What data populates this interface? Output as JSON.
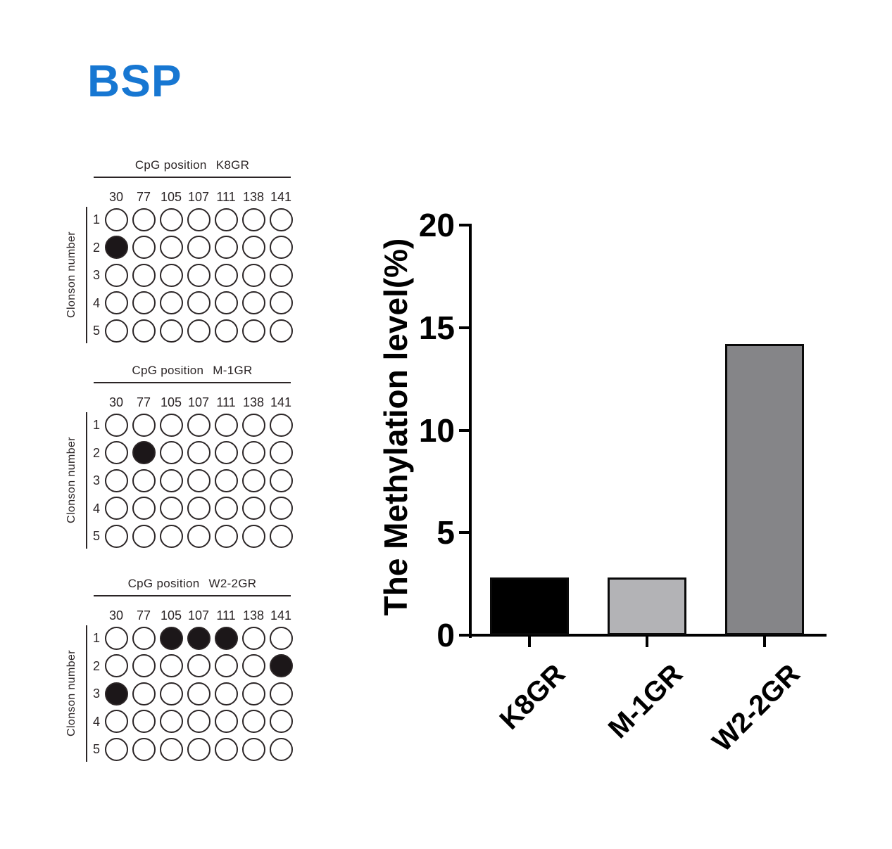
{
  "page": {
    "title": "BSP",
    "accent_color": "#1777d2",
    "ink_color": "#2b2526",
    "fill_color": "#1c1719",
    "background": "#ffffff"
  },
  "diagrams": [
    {
      "title_prefix": "CpG position",
      "sample": "K8GR",
      "cpg_positions": [
        "30",
        "77",
        "105",
        "107",
        "111",
        "138",
        "141"
      ],
      "clone_labels": [
        "1",
        "2",
        "3",
        "4",
        "5"
      ],
      "axis_label": "Clonson number",
      "filled_cells": [
        [
          1,
          0
        ]
      ]
    },
    {
      "title_prefix": "CpG position",
      "sample": "M-1GR",
      "cpg_positions": [
        "30",
        "77",
        "105",
        "107",
        "111",
        "138",
        "141"
      ],
      "clone_labels": [
        "1",
        "2",
        "3",
        "4",
        "5"
      ],
      "axis_label": "Clonson number",
      "filled_cells": [
        [
          1,
          1
        ]
      ]
    },
    {
      "title_prefix": "CpG position",
      "sample": "W2-2GR",
      "cpg_positions": [
        "30",
        "77",
        "105",
        "107",
        "111",
        "138",
        "141"
      ],
      "clone_labels": [
        "1",
        "2",
        "3",
        "4",
        "5"
      ],
      "axis_label": "Clonson number",
      "filled_cells": [
        [
          0,
          2
        ],
        [
          0,
          3
        ],
        [
          0,
          4
        ],
        [
          1,
          6
        ],
        [
          2,
          0
        ]
      ]
    }
  ],
  "chart_data": {
    "type": "bar",
    "categories": [
      "K8GR",
      "M-1GR",
      "W2-2GR"
    ],
    "values": [
      2.8,
      2.8,
      14.2
    ],
    "title": "",
    "xlabel": "",
    "ylabel": "The Methylation level(%)",
    "ylim": [
      0,
      20
    ],
    "yticks": [
      0,
      5,
      10,
      15,
      20
    ],
    "bar_colors": [
      "#000000",
      "#b3b3b6",
      "#858588"
    ],
    "bar_border_color": "#0a0a0a",
    "axis_color": "#000000",
    "grid": false,
    "legend": false
  }
}
